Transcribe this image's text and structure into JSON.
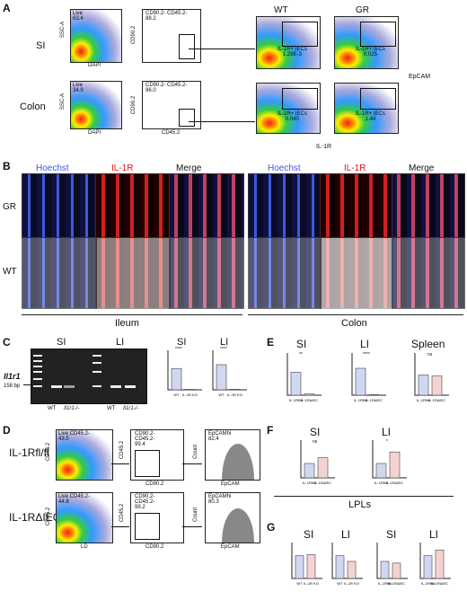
{
  "panels": {
    "A": {
      "letter": "A",
      "rows": [
        "SI",
        "Colon"
      ],
      "genotypes": [
        "WT",
        "GR"
      ],
      "live_si": "Live\n63.4",
      "live_colon": "Live\n34.9",
      "gate_si": "CD90.2- CD45.2-\n88.2",
      "gate_colon": "CD90.2- CD45.2-\n96.0",
      "il1r_wt_si": "IL-1R+ IECs\n1.29E-3",
      "il1r_gr_si": "IL-1R+ IECs\n0.025",
      "il1r_wt_colon": "IL-1R+ IECs\n0.040",
      "il1r_gr_colon": "IL-1R+ IECs\n1.44",
      "axis_ssca": "SSC-A",
      "axis_dapi": "DAPI",
      "axis_cd90": "CD90.2",
      "axis_cd45": "CD45.2",
      "axis_epcam": "EpCAM",
      "axis_il1r": "IL-1R"
    },
    "B": {
      "letter": "B",
      "col_labels": [
        "Hoechst",
        "IL-1R",
        "Merge"
      ],
      "row_labels": [
        "GR",
        "WT"
      ],
      "group_ileum": "Ileum",
      "group_colon": "Colon"
    },
    "C": {
      "letter": "C",
      "gel_si": "SI",
      "gel_li": "LI",
      "gene": "Il1r1",
      "bp": "158 bp",
      "lane_wt": "WT",
      "lane_ko": "Il1r1-/-",
      "bar_si": "SI",
      "bar_li": "LI",
      "sig": "****",
      "ylabel": "Il1r1 Relative Expression",
      "xlabels": [
        "WT",
        "IL-1R KO"
      ]
    },
    "D": {
      "letter": "D",
      "row1_label": "IL-1Rfl/fl",
      "row2_label": "IL-1RΔIEC",
      "live1": "Live CD45.2-\n43.5",
      "live2": "Live CD45.2-\n44.8",
      "cd_1": "CD90.2-\nCD45.2-\n99.4",
      "cd_2": "CD90.2-\nCD45.2-\n99.2",
      "ep_1": "EpCAMhi\n82.4",
      "ep_2": "EpCAMhi\n80.3",
      "ax_cd45": "CD45.2",
      "ax_ld": "LD",
      "ax_cd90": "CD90.2",
      "ax_count": "Count",
      "ax_epcam": "EpCAM"
    },
    "E": {
      "letter": "E",
      "titles": [
        "SI",
        "LI",
        "Spleen"
      ],
      "sigs": [
        "**",
        "****",
        "ns"
      ],
      "ylabel": "Il1r1 Relative Expression",
      "xlabels": [
        "IL-1Rfl/fl",
        "IL-1RΔIEC"
      ]
    },
    "F": {
      "letter": "F",
      "titles": [
        "SI",
        "LI"
      ],
      "sigs": [
        "ns",
        "*"
      ],
      "ylabel": "Il1r1 Relative Expression",
      "xlabels": [
        "IL-1Rfl/fl",
        "IL-1RΔIEC"
      ],
      "footer": "LPLs"
    },
    "G": {
      "letter": "G",
      "titles": [
        "SI",
        "LI",
        "SI",
        "LI"
      ],
      "sigs": [
        "ns",
        "ns",
        "ns",
        "ns"
      ],
      "ylabel": "Epcam Relative Expression",
      "xlabels_ko": [
        "WT",
        "IL-1R KO"
      ],
      "xlabels_ff": [
        "IL-1Rfl/fl",
        "IL-1RΔIEC"
      ]
    }
  },
  "chart_data": [
    {
      "type": "bar",
      "panel": "C-SI",
      "title": "SI",
      "categories": [
        "WT",
        "IL-1R KO"
      ],
      "values": [
        0.85,
        0.02
      ],
      "ylim": [
        0,
        1.5
      ]
    },
    {
      "type": "bar",
      "panel": "C-LI",
      "title": "LI",
      "categories": [
        "WT",
        "IL-1R KO"
      ],
      "values": [
        1.0,
        0.02
      ],
      "ylim": [
        0,
        1.5
      ]
    },
    {
      "type": "bar",
      "panel": "E-SI",
      "title": "SI",
      "categories": [
        "IL-1Rfl/fl",
        "IL-1RΔIEC"
      ],
      "values": [
        0.85,
        0.05
      ],
      "ylim": [
        0,
        1.5
      ]
    },
    {
      "type": "bar",
      "panel": "E-LI",
      "title": "LI",
      "categories": [
        "IL-1Rfl/fl",
        "IL-1RΔIEC"
      ],
      "values": [
        1.0,
        0.02
      ],
      "ylim": [
        0,
        1.5
      ]
    },
    {
      "type": "bar",
      "panel": "E-Spleen",
      "title": "Spleen",
      "categories": [
        "IL-1Rfl/fl",
        "IL-1RΔIEC"
      ],
      "values": [
        1.0,
        0.95
      ],
      "ylim": [
        0,
        2
      ]
    },
    {
      "type": "bar",
      "panel": "F-SI",
      "title": "SI",
      "categories": [
        "IL-1Rfl/fl",
        "IL-1RΔIEC"
      ],
      "values": [
        1.0,
        1.4
      ],
      "ylim": [
        0,
        2.5
      ]
    },
    {
      "type": "bar",
      "panel": "F-LI",
      "title": "LI",
      "categories": [
        "IL-1Rfl/fl",
        "IL-1RΔIEC"
      ],
      "values": [
        1.0,
        1.8
      ],
      "ylim": [
        0,
        2.5
      ]
    },
    {
      "type": "bar",
      "panel": "G-SI-KO",
      "title": "SI",
      "categories": [
        "WT",
        "IL-1R KO"
      ],
      "values": [
        1.0,
        1.05
      ],
      "ylim": [
        0,
        1.5
      ]
    },
    {
      "type": "bar",
      "panel": "G-LI-KO",
      "title": "LI",
      "categories": [
        "WT",
        "IL-1R KO"
      ],
      "values": [
        1.0,
        0.75
      ],
      "ylim": [
        0,
        1.5
      ]
    },
    {
      "type": "bar",
      "panel": "G-SI-FF",
      "title": "SI",
      "categories": [
        "IL-1Rfl/fl",
        "IL-1RΔIEC"
      ],
      "values": [
        1.0,
        0.9
      ],
      "ylim": [
        0,
        2
      ]
    },
    {
      "type": "bar",
      "panel": "G-LI-FF",
      "title": "LI",
      "categories": [
        "IL-1Rfl/fl",
        "IL-1RΔIEC"
      ],
      "values": [
        1.0,
        1.25
      ],
      "ylim": [
        0,
        1.5
      ]
    }
  ]
}
